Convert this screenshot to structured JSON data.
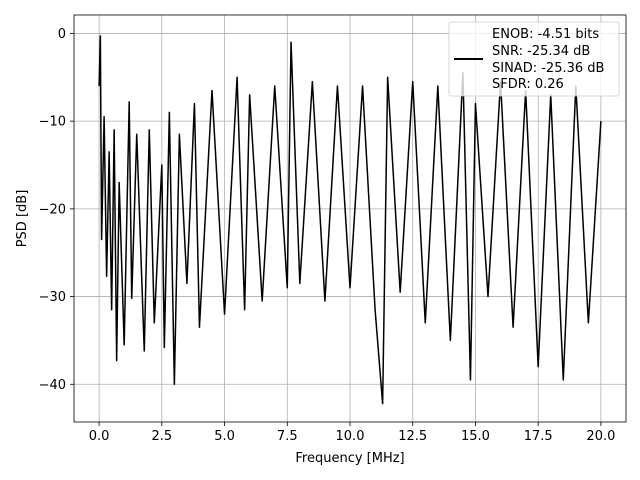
{
  "chart_data": {
    "type": "line",
    "title": "",
    "xlabel": "Frequency [MHz]",
    "ylabel": "PSD [dB]",
    "xlim": [
      -1.0,
      21.0
    ],
    "ylim": [
      -44.3,
      2.1
    ],
    "xticks": [
      0.0,
      2.5,
      5.0,
      7.5,
      10.0,
      12.5,
      15.0,
      17.5,
      20.0
    ],
    "xtick_labels": [
      "0.0",
      "2.5",
      "5.0",
      "7.5",
      "10.0",
      "12.5",
      "15.0",
      "17.5",
      "20.0"
    ],
    "yticks": [
      0,
      -10,
      -20,
      -30,
      -40
    ],
    "ytick_labels": [
      "0",
      "−10",
      "−20",
      "−30",
      "−40"
    ],
    "grid": true,
    "legend_position": "top-right",
    "legend_entries": [
      "ENOB: -4.51 bits",
      "SNR: -25.34 dB",
      "SINAD: -25.36 dB",
      "SFDR: 0.26"
    ],
    "color": "#000000",
    "series": [
      {
        "x": [
          0.0,
          0.05,
          0.1,
          0.2,
          0.3,
          0.4,
          0.5,
          0.6,
          0.7,
          0.8,
          1.0,
          1.2,
          1.3,
          1.5,
          1.8,
          2.0,
          2.2,
          2.5,
          2.6,
          2.8,
          3.0,
          3.2,
          3.5,
          3.8,
          4.0,
          4.5,
          5.0,
          5.5,
          5.8,
          6.0,
          6.5,
          7.0,
          7.5,
          7.65,
          8.0,
          8.5,
          9.0,
          9.5,
          10.0,
          10.5,
          11.0,
          11.3,
          11.5,
          12.0,
          12.5,
          13.0,
          13.5,
          14.0,
          14.5,
          14.8,
          15.0,
          15.5,
          16.0,
          16.5,
          17.0,
          17.5,
          18.0,
          18.5,
          19.0,
          19.5,
          20.0
        ],
        "values": [
          -6.0,
          -0.3,
          -23.5,
          -9.5,
          -27.7,
          -13.5,
          -31.5,
          -11.0,
          -37.3,
          -17.0,
          -35.5,
          -7.8,
          -30.2,
          -11.5,
          -36.2,
          -11.0,
          -33.0,
          -15.0,
          -35.8,
          -9.0,
          -40.0,
          -11.5,
          -28.5,
          -8.0,
          -33.5,
          -6.5,
          -32.0,
          -5.0,
          -31.5,
          -7.0,
          -30.5,
          -6.0,
          -29.0,
          -1.0,
          -28.5,
          -5.5,
          -30.5,
          -6.0,
          -29.0,
          -6.0,
          -31.5,
          -42.2,
          -5.0,
          -29.5,
          -5.5,
          -33.0,
          -6.0,
          -35.0,
          -4.5,
          -39.5,
          -8.0,
          -30.0,
          -5.5,
          -33.5,
          -6.5,
          -38.0,
          -7.0,
          -39.5,
          -6.0,
          -33.0,
          -10.0
        ]
      }
    ]
  }
}
